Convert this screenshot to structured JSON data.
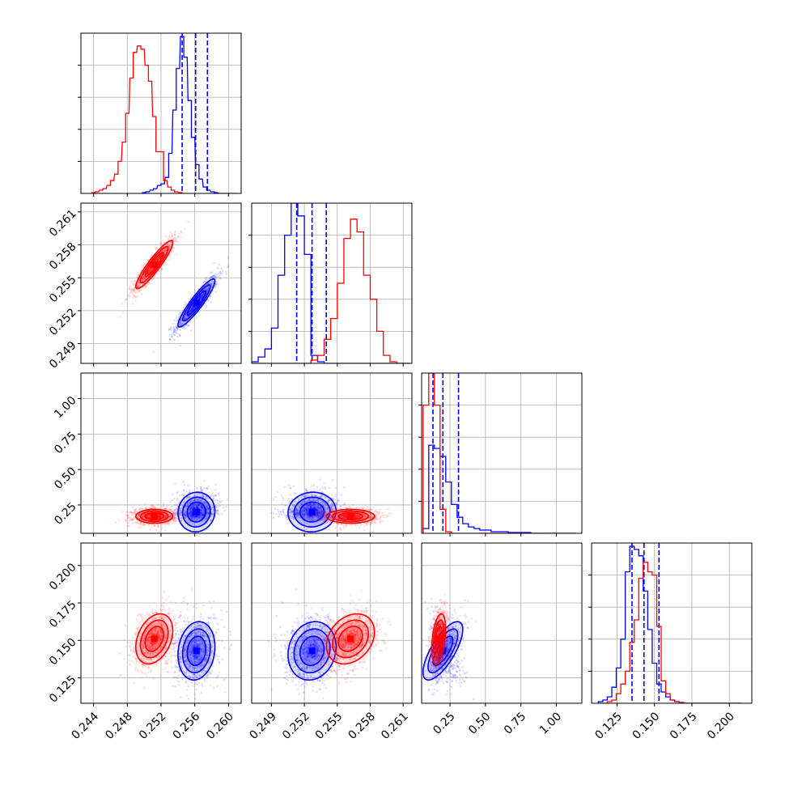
{
  "chart_data": {
    "type": "corner",
    "description_parameters": 4,
    "colors": {
      "model_a": "#0000ff",
      "model_b": "#ff0000",
      "grid": "#b0b0b0"
    },
    "grid": true,
    "parameters": [
      {
        "range": [
          0.2425,
          0.2615
        ],
        "ticks": [
          0.244,
          0.248,
          0.252,
          0.256,
          0.26
        ],
        "tick_labels": [
          "0.244",
          "0.248",
          "0.252",
          "0.256",
          "0.260"
        ]
      },
      {
        "range": [
          0.2472,
          0.2618
        ],
        "ticks": [
          0.249,
          0.252,
          0.255,
          0.258,
          0.261
        ],
        "tick_labels": [
          "0.249",
          "0.252",
          "0.255",
          "0.258",
          "0.261"
        ]
      },
      {
        "range": [
          0.05,
          1.18
        ],
        "ticks": [
          0.25,
          0.5,
          0.75,
          1.0
        ],
        "tick_labels": [
          "0.25",
          "0.50",
          "0.75",
          "1.00"
        ]
      },
      {
        "range": [
          0.108,
          0.215
        ],
        "ticks": [
          0.125,
          0.15,
          0.175,
          0.2
        ],
        "tick_labels": [
          "0.125",
          "0.150",
          "0.175",
          "0.200"
        ]
      }
    ],
    "series": [
      {
        "key": "blue",
        "color": "#0000ff",
        "quantiles": [
          [
            0.2545,
            0.2561,
            0.2575
          ],
          [
            0.2513,
            0.2527,
            0.254
          ],
          [
            0.13,
            0.2,
            0.31
          ],
          [
            0.135,
            0.143,
            0.153
          ]
        ],
        "hist": [
          {
            "x": [
              0.25,
              0.2504,
              0.2509,
              0.2513,
              0.2518,
              0.2522,
              0.2527,
              0.2531,
              0.2536,
              0.254,
              0.2545,
              0.2549,
              0.2554,
              0.2558,
              0.2563,
              0.2567,
              0.2572,
              0.2576,
              0.2581,
              0.2585,
              0.259,
              0.2594,
              0.2599,
              0.2603,
              0.2608
            ],
            "y": [
              0.005,
              0.01,
              0.02,
              0.03,
              0.05,
              0.06,
              0.1,
              0.25,
              0.52,
              0.78,
              0.98,
              0.85,
              0.58,
              0.35,
              0.18,
              0.09,
              0.04,
              0.02,
              0.01,
              0.005,
              0,
              0,
              0,
              0,
              0
            ]
          },
          {
            "x": [
              0.2475,
              0.2481,
              0.2487,
              0.2493,
              0.2499,
              0.2505,
              0.2511,
              0.2517,
              0.2523,
              0.2529,
              0.2535,
              0.2541,
              0.2547,
              0.2553,
              0.2559,
              0.2565,
              0.2571,
              0.2577,
              0.2583,
              0.2589,
              0.2595,
              0.2601,
              0.2607,
              0.2613
            ],
            "y": [
              0.01,
              0.04,
              0.09,
              0.22,
              0.55,
              0.8,
              1.0,
              0.92,
              0.68,
              0.05,
              0.01,
              0,
              0,
              0,
              0,
              0,
              0,
              0,
              0,
              0,
              0,
              0,
              0,
              0
            ]
          },
          {
            "x": [
              0.08,
              0.12,
              0.16,
              0.2,
              0.24,
              0.28,
              0.32,
              0.36,
              0.4,
              0.44,
              0.48,
              0.52,
              0.56,
              0.6,
              0.64,
              0.68,
              0.72,
              0.76,
              0.8,
              0.84,
              0.88,
              0.92,
              0.96,
              1.0,
              1.04,
              1.08,
              1.12
            ],
            "y": [
              0.03,
              0.55,
              0.53,
              0.48,
              0.32,
              0.18,
              0.1,
              0.06,
              0.04,
              0.03,
              0.02,
              0.02,
              0.01,
              0.01,
              0.01,
              0.005,
              0.005,
              0.005,
              0.005,
              0,
              0,
              0,
              0,
              0,
              0,
              0,
              0
            ]
          },
          {
            "x": [
              0.114,
              0.117,
              0.12,
              0.123,
              0.126,
              0.129,
              0.132,
              0.135,
              0.138,
              0.141,
              0.144,
              0.147,
              0.15,
              0.153,
              0.156,
              0.159,
              0.162,
              0.165,
              0.168,
              0.171,
              0.174,
              0.177,
              0.18,
              0.183,
              0.186,
              0.189,
              0.192,
              0.195,
              0.198,
              0.201,
              0.204,
              0.207
            ],
            "y": [
              0.01,
              0.02,
              0.04,
              0.1,
              0.22,
              0.4,
              0.82,
              0.98,
              0.96,
              0.92,
              0.7,
              0.46,
              0.25,
              0.12,
              0.07,
              0.04,
              0.02,
              0.01,
              0.005,
              0,
              0,
              0,
              0,
              0,
              0,
              0,
              0,
              0,
              0,
              0,
              0,
              0
            ]
          }
        ],
        "cov": [
          [
            1.2e-06,
            1.1e-06,
            4e-06,
            1.5e-06
          ],
          [
            1.1e-06,
            1.2e-06,
            3e-06,
            1.4e-06
          ],
          [
            4e-06,
            3e-06,
            0.0049,
            0.0005
          ],
          [
            1.5e-06,
            1.4e-06,
            0.0005,
            9.5e-05
          ]
        ],
        "mean": [
          0.2562,
          0.2527,
          0.2,
          0.143
        ]
      },
      {
        "key": "red",
        "color": "#ff0000",
        "quantiles": null,
        "hist": [
          {
            "x": [
              0.244,
              0.2444,
              0.2449,
              0.2453,
              0.2458,
              0.2462,
              0.2467,
              0.2471,
              0.2476,
              0.248,
              0.2485,
              0.2489,
              0.2494,
              0.2498,
              0.2503,
              0.2507,
              0.2512,
              0.2516,
              0.2521,
              0.2525,
              0.253,
              0.2534,
              0.2538,
              0.2543,
              0.2547
            ],
            "y": [
              0.005,
              0.01,
              0.02,
              0.03,
              0.05,
              0.08,
              0.12,
              0.2,
              0.32,
              0.5,
              0.72,
              0.88,
              0.92,
              0.9,
              0.8,
              0.7,
              0.48,
              0.26,
              0.26,
              0.08,
              0.04,
              0.02,
              0.01,
              0.005,
              0
            ]
          },
          {
            "x": [
              0.2475,
              0.2481,
              0.2487,
              0.2493,
              0.2499,
              0.2505,
              0.2511,
              0.2517,
              0.2523,
              0.2529,
              0.2535,
              0.2541,
              0.2547,
              0.2553,
              0.2559,
              0.2565,
              0.2571,
              0.2577,
              0.2583,
              0.2589,
              0.2595,
              0.2601,
              0.2607,
              0.2613
            ],
            "y": [
              0,
              0,
              0,
              0,
              0,
              0,
              0,
              0,
              0,
              0.02,
              0.05,
              0.15,
              0.28,
              0.5,
              0.78,
              0.9,
              0.82,
              0.55,
              0.4,
              0.2,
              0.05,
              0.01,
              0,
              0
            ]
          },
          {
            "x": [
              0.08,
              0.12,
              0.16,
              0.2,
              0.24,
              0.28,
              0.32,
              0.36,
              0.4,
              0.44,
              0.48,
              0.52,
              0.56,
              0.6,
              0.64,
              0.68,
              0.72,
              0.76,
              0.8,
              0.84,
              0.88,
              0.92,
              0.96,
              1.0,
              1.04,
              1.08,
              1.12
            ],
            "y": [
              0.8,
              1.0,
              0.8,
              0.15,
              0.01,
              0,
              0,
              0,
              0,
              0,
              0,
              0,
              0,
              0,
              0,
              0,
              0,
              0,
              0,
              0,
              0,
              0,
              0,
              0,
              0,
              0,
              0
            ]
          },
          {
            "x": [
              0.114,
              0.117,
              0.12,
              0.123,
              0.126,
              0.129,
              0.132,
              0.135,
              0.138,
              0.141,
              0.144,
              0.147,
              0.15,
              0.153,
              0.156,
              0.159,
              0.162,
              0.165,
              0.168,
              0.171,
              0.174,
              0.177,
              0.18,
              0.183,
              0.186,
              0.189,
              0.192,
              0.195,
              0.198,
              0.201,
              0.204,
              0.207
            ],
            "y": [
              0,
              0,
              0.01,
              0.02,
              0.06,
              0.12,
              0.2,
              0.38,
              0.52,
              0.78,
              0.88,
              0.82,
              0.8,
              0.48,
              0.14,
              0.06,
              0.02,
              0.01,
              0.005,
              0,
              0,
              0,
              0,
              0,
              0,
              0,
              0,
              0,
              0,
              0,
              0,
              0
            ]
          }
        ],
        "cov": [
          [
            1.2e-06,
            1.1e-06,
            2e-07,
            3e-06
          ],
          [
            1.1e-06,
            1.2e-06,
            2e-07,
            2.5e-06
          ],
          [
            2e-07,
            2e-07,
            0.0006,
            8e-05
          ],
          [
            3e-06,
            2.5e-06,
            8e-05,
            7e-05
          ]
        ],
        "mean": [
          0.2512,
          0.2562,
          0.17,
          0.151
        ]
      }
    ]
  }
}
